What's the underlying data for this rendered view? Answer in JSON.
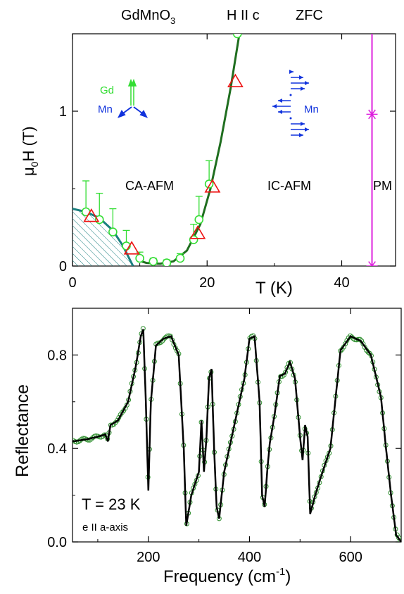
{
  "top_header": {
    "compound": "GdMnO",
    "compound_sub": "3",
    "field_dir": "H II c",
    "protocol": "ZFC"
  },
  "colors": {
    "green_line": "#1f6e1f",
    "green_marker": "#33dd33",
    "red_triangle": "#ee1111",
    "teal": "#1a7f7f",
    "magenta": "#dd22dd",
    "blue": "#1133dd",
    "spectrum_circle": "#2f8f2f"
  },
  "chart_data": [
    {
      "type": "scatter",
      "title": "",
      "xlabel": "T (K)",
      "ylabel_main": "μ",
      "ylabel_sub": "0",
      "ylabel_rest": "H (T)",
      "xlim": [
        0,
        48
      ],
      "ylim": [
        0,
        1.5
      ],
      "x_ticks": [
        0,
        20,
        40
      ],
      "x_tick_labels": [
        "0",
        "20",
        "40"
      ],
      "y_ticks": [
        0,
        1
      ],
      "y_tick_labels": [
        "0",
        "1"
      ],
      "phase_labels": [
        "CA-AFM",
        "IC-AFM",
        "PM"
      ],
      "inset_labels": {
        "gd": "Gd",
        "mn_left": "Mn",
        "mn_right": "Mn"
      },
      "series": [
        {
          "marker": "circle",
          "points": [
            {
              "x": 2,
              "y": 0.35,
              "err": 0.2
            },
            {
              "x": 4,
              "y": 0.3,
              "err": 0.17
            },
            {
              "x": 6,
              "y": 0.22,
              "err": 0.15
            },
            {
              "x": 8,
              "y": 0.13,
              "err": 0.1
            },
            {
              "x": 10,
              "y": 0.05,
              "err": 0.04
            },
            {
              "x": 12,
              "y": 0.03,
              "err": 0.02
            },
            {
              "x": 14,
              "y": 0.02,
              "err": 0.02
            },
            {
              "x": 16,
              "y": 0.05,
              "err": 0.03
            },
            {
              "x": 18,
              "y": 0.17,
              "err": 0.1
            },
            {
              "x": 18.8,
              "y": 0.3,
              "err": 0.15
            },
            {
              "x": 20.3,
              "y": 0.53,
              "err": 0.15
            },
            {
              "x": 24.5,
              "y": 1.5,
              "err": 0.1
            }
          ]
        },
        {
          "marker": "triangle",
          "points": [
            {
              "x": 2.8,
              "y": 0.32
            },
            {
              "x": 8.8,
              "y": 0.11
            },
            {
              "x": 18.6,
              "y": 0.21
            },
            {
              "x": 20.8,
              "y": 0.51
            },
            {
              "x": 24.2,
              "y": 1.19
            }
          ]
        },
        {
          "marker": "star",
          "points": [
            {
              "x": 44.5,
              "y": 0.98
            },
            {
              "x": 44.5,
              "y": 0.0
            }
          ]
        }
      ],
      "boundary_line": [
        [
          9.5,
          0.04
        ],
        [
          11,
          0.02
        ],
        [
          13,
          0.015
        ],
        [
          15,
          0.03
        ],
        [
          17,
          0.1
        ],
        [
          19,
          0.27
        ],
        [
          20.5,
          0.5
        ],
        [
          22,
          0.8
        ],
        [
          23.5,
          1.15
        ],
        [
          24.8,
          1.5
        ]
      ],
      "teal_boundary": [
        [
          0,
          0.37
        ],
        [
          2,
          0.35
        ],
        [
          4,
          0.31
        ],
        [
          6,
          0.23
        ],
        [
          7.5,
          0.13
        ],
        [
          9,
          0.0
        ]
      ],
      "pm_line_x": 44.5
    },
    {
      "type": "line",
      "title": "",
      "xlabel": "Frequency (cm",
      "xlabel_sup": "-1",
      "xlabel_end": ")",
      "ylabel": "Reflectance",
      "xlim": [
        50,
        700
      ],
      "ylim": [
        0,
        1.0
      ],
      "x_ticks": [
        200,
        400,
        600
      ],
      "x_tick_labels": [
        "200",
        "400",
        "600"
      ],
      "y_ticks": [
        0.0,
        0.4,
        0.8
      ],
      "y_tick_labels": [
        "0.0",
        "0.4",
        "0.8"
      ],
      "annotations": [
        "T = 23 K",
        "e II a-axis"
      ],
      "series": [
        {
          "name": "",
          "x": [
            50,
            80,
            100,
            115,
            120,
            125,
            140,
            160,
            175,
            185,
            190,
            195,
            200,
            205,
            215,
            230,
            245,
            260,
            270,
            275,
            285,
            300,
            305,
            310,
            315,
            320,
            325,
            330,
            335,
            340,
            350,
            370,
            390,
            400,
            410,
            420,
            425,
            430,
            435,
            440,
            450,
            460,
            470,
            480,
            490,
            500,
            505,
            510,
            515,
            520,
            530,
            540,
            560,
            580,
            600,
            620,
            640,
            660,
            670,
            680,
            690,
            700
          ],
          "y": [
            0.43,
            0.44,
            0.45,
            0.46,
            0.43,
            0.5,
            0.52,
            0.6,
            0.75,
            0.88,
            0.91,
            0.6,
            0.22,
            0.6,
            0.84,
            0.87,
            0.88,
            0.8,
            0.4,
            0.07,
            0.2,
            0.3,
            0.52,
            0.3,
            0.45,
            0.7,
            0.74,
            0.4,
            0.15,
            0.1,
            0.3,
            0.5,
            0.7,
            0.87,
            0.88,
            0.6,
            0.2,
            0.15,
            0.3,
            0.42,
            0.55,
            0.71,
            0.72,
            0.77,
            0.7,
            0.45,
            0.35,
            0.5,
            0.45,
            0.12,
            0.2,
            0.27,
            0.4,
            0.82,
            0.88,
            0.86,
            0.8,
            0.62,
            0.4,
            0.2,
            0.03,
            0.0
          ]
        }
      ]
    }
  ]
}
